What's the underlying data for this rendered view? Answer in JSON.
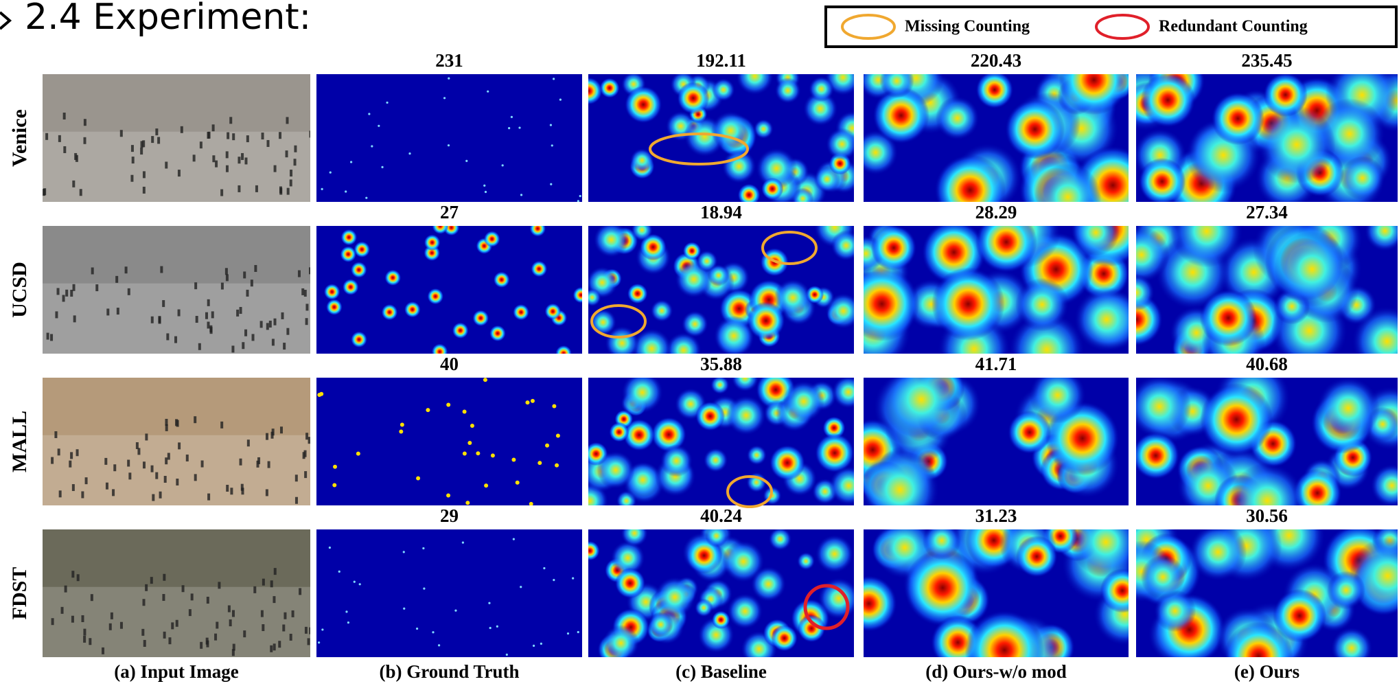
{
  "title": "2.4 Experiment:",
  "legend": [
    "Missing Counting",
    "Redundant Counting"
  ],
  "columns": [
    "(a) Input Image",
    "(b) Ground Truth",
    "(c) Baseline",
    "(d) Ours-w/o mod",
    "(e) Ours"
  ],
  "rows": [
    {
      "label": "Venice",
      "counts": [
        "231",
        "192.11",
        "220.43",
        "235.45"
      ]
    },
    {
      "label": "UCSD",
      "counts": [
        "27",
        "18.94",
        "28.29",
        "27.34"
      ]
    },
    {
      "label": "MALL",
      "counts": [
        "40",
        "35.88",
        "41.71",
        "40.68"
      ]
    },
    {
      "label": "FDST",
      "counts": [
        "29",
        "40.24",
        "31.23",
        "30.56"
      ]
    }
  ]
}
